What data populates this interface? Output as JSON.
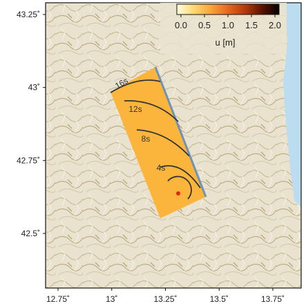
{
  "map": {
    "lat_ticks": [
      {
        "label": "43.25˚",
        "value": 43.25
      },
      {
        "label": "43˚",
        "value": 43.0
      },
      {
        "label": "42.75˚",
        "value": 42.75
      },
      {
        "label": "42.5˚",
        "value": 42.5
      }
    ],
    "lon_ticks": [
      {
        "label": "12.75˚",
        "value": 12.75
      },
      {
        "label": "13˚",
        "value": 13.0
      },
      {
        "label": "13.25˚",
        "value": 13.25
      },
      {
        "label": "13.5˚",
        "value": 13.5
      },
      {
        "label": "13.75˚",
        "value": 13.75
      }
    ],
    "slip_color": "#fbb53d",
    "fault_trace_color": "#6d93b5",
    "contour_color": "#333333",
    "epicenter_color": "#e32214",
    "sea_color": "#bcdcf0",
    "terrain_color": "#e8e0cc",
    "rupture_time_contours": [
      "4s",
      "8s",
      "12s",
      "16s"
    ]
  },
  "colorbar": {
    "tick_labels": [
      "0.0",
      "0.5",
      "1.0",
      "1.5",
      "2.0"
    ],
    "unit_label": "u [m]",
    "colors": [
      "#ffffe0",
      "#fdd870",
      "#f9a43a",
      "#e7661e",
      "#b53a0d",
      "#5a1300",
      "#000000"
    ]
  }
}
